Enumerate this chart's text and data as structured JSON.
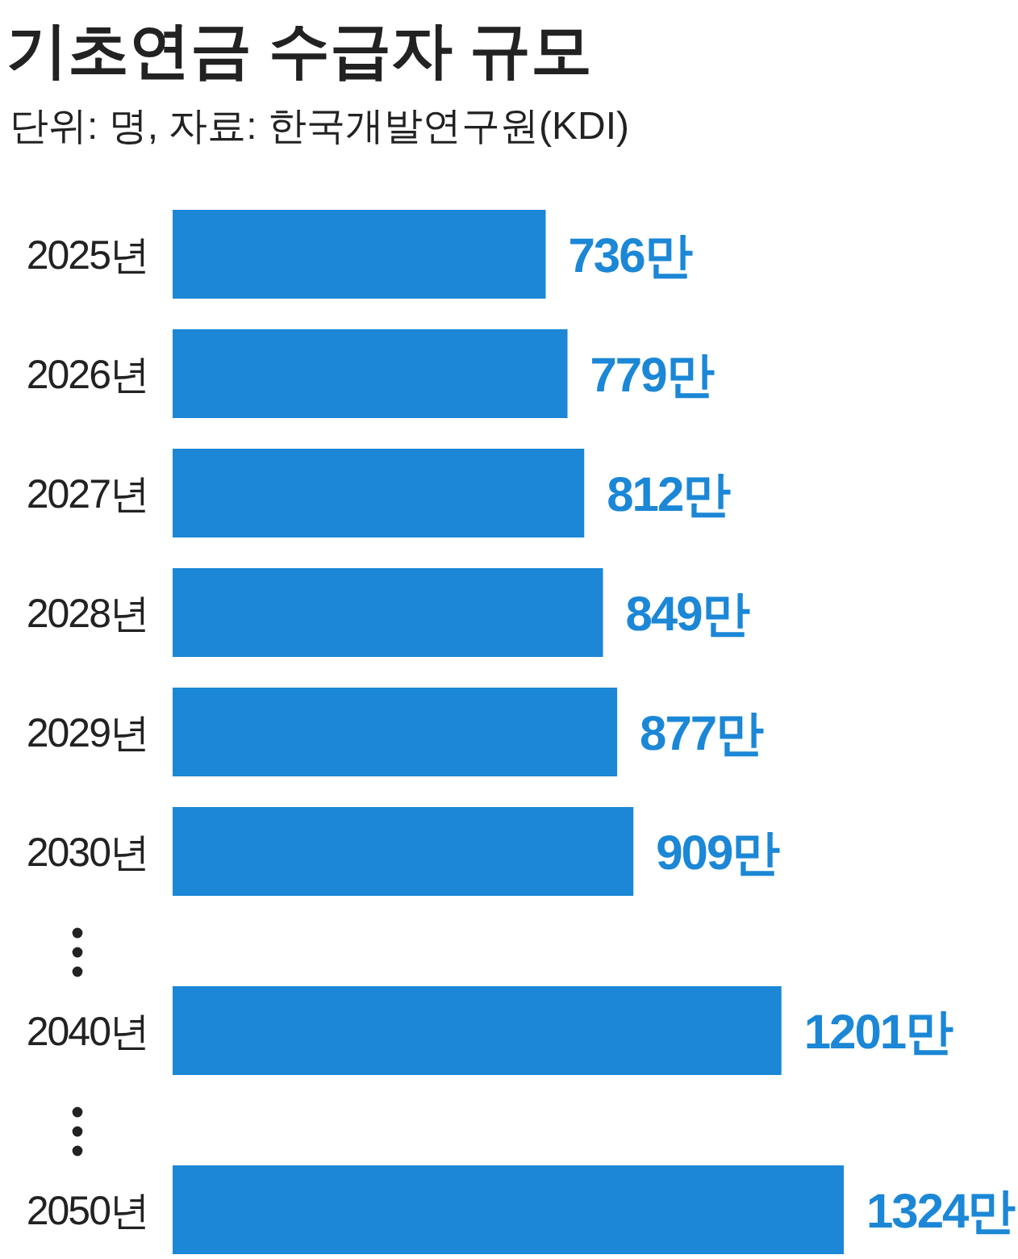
{
  "chart_data": {
    "type": "bar",
    "orientation": "horizontal",
    "title": "기초연금 수급자 규모",
    "subtitle": "단위: 명, 자료: 한국개발연구원(KDI)",
    "color": "#1b87d6",
    "categories": [
      "2025년",
      "2026년",
      "2027년",
      "2028년",
      "2029년",
      "2030년",
      null,
      "2040년",
      null,
      "2050년"
    ],
    "values": [
      736,
      779,
      812,
      849,
      877,
      909,
      null,
      1201,
      null,
      1324
    ],
    "value_labels": [
      "736만",
      "779만",
      "812만",
      "849만",
      "877만",
      "909만",
      null,
      "1201만",
      null,
      "1324만"
    ]
  }
}
